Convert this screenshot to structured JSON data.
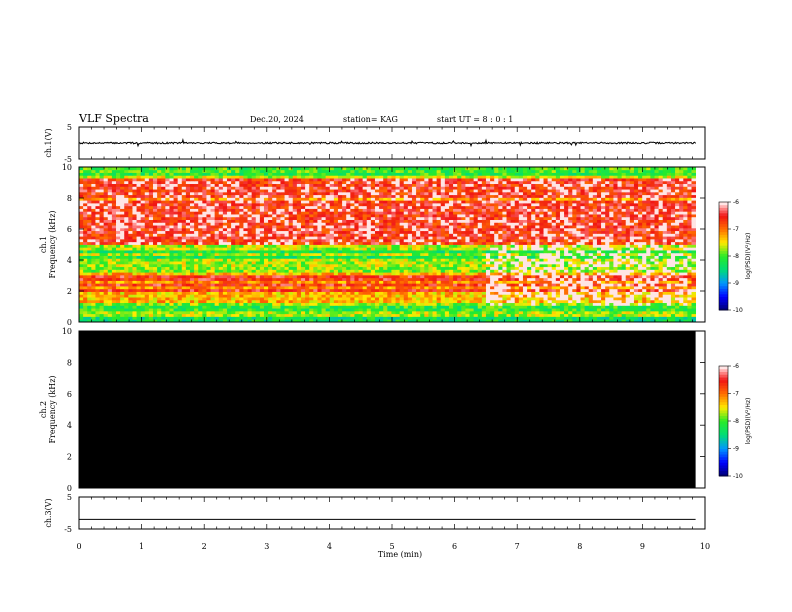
{
  "header": {
    "title": "VLF Spectra",
    "date": "Dec.20, 2024",
    "station": "station= KAG",
    "start": "start  UT =   8 : 0  : 1"
  },
  "chart_data": [
    {
      "id": "ch1-waveform",
      "type": "line",
      "ylabel": "ch.1(V)",
      "ylim": [
        -5,
        5
      ],
      "yticks": [
        "5",
        "-5"
      ],
      "xlim": [
        0,
        10
      ],
      "x_end_min": 9.85,
      "baseline": 0,
      "noise_amplitude": 0.25
    },
    {
      "id": "ch1-spectrogram",
      "type": "heatmap",
      "ylabel": "ch.1\nFrequency (kHz)",
      "ylim": [
        0,
        10
      ],
      "yticks": [
        "0",
        "2",
        "4",
        "6",
        "8",
        "10"
      ],
      "xlim": [
        0,
        10
      ],
      "x_end_min": 9.85,
      "colorbar": {
        "label": "log(PSD)(V²/Hz)",
        "range": [
          -10,
          -6
        ],
        "ticks": [
          "-6",
          "-7",
          "-8",
          "-9",
          "-10"
        ]
      },
      "bands": [
        {
          "f": [
            0.0,
            0.3
          ],
          "level": -8.3
        },
        {
          "f": [
            0.3,
            0.7
          ],
          "level": -7.7
        },
        {
          "f": [
            0.7,
            1.0
          ],
          "level": -8.1
        },
        {
          "f": [
            1.0,
            2.0
          ],
          "level": -7.3
        },
        {
          "f": [
            2.0,
            3.0
          ],
          "level": -6.6
        },
        {
          "f": [
            3.0,
            3.6
          ],
          "level": -7.3
        },
        {
          "f": [
            3.6,
            5.0
          ],
          "level": -7.7
        },
        {
          "f": [
            5.0,
            9.3
          ],
          "level": -6.6
        },
        {
          "f": [
            9.3,
            9.6
          ],
          "level": -7.6
        },
        {
          "f": [
            9.6,
            10.0
          ],
          "level": -8.0
        }
      ],
      "lines_khz": [
        1.2,
        2.2,
        2.6,
        3.4,
        4.2,
        4.6,
        8.0,
        9.5
      ]
    },
    {
      "id": "ch2-spectrogram",
      "type": "heatmap",
      "ylabel": "ch.2\nFrequency (kHz)",
      "ylim": [
        0,
        10
      ],
      "yticks": [
        "0",
        "2",
        "4",
        "6",
        "8",
        "10"
      ],
      "xlim": [
        0,
        10
      ],
      "x_end_min": 9.85,
      "fill": "#000000",
      "colorbar": {
        "label": "log(PSD)(V²/Hz)",
        "range": [
          -10,
          -6
        ],
        "ticks": [
          "-6",
          "-7",
          "-8",
          "-9",
          "-10"
        ]
      }
    },
    {
      "id": "ch3-waveform",
      "type": "line",
      "ylabel": "ch.3(V)",
      "ylim": [
        -5,
        5
      ],
      "yticks": [
        "5",
        "-5"
      ],
      "xlim": [
        0,
        10
      ],
      "x_end_min": 9.85,
      "baseline": -2.0,
      "noise_amplitude": 0
    }
  ],
  "xaxis": {
    "label": "Time  (min)",
    "ticks": [
      "0",
      "1",
      "2",
      "3",
      "4",
      "5",
      "6",
      "7",
      "8",
      "9",
      "10"
    ]
  }
}
